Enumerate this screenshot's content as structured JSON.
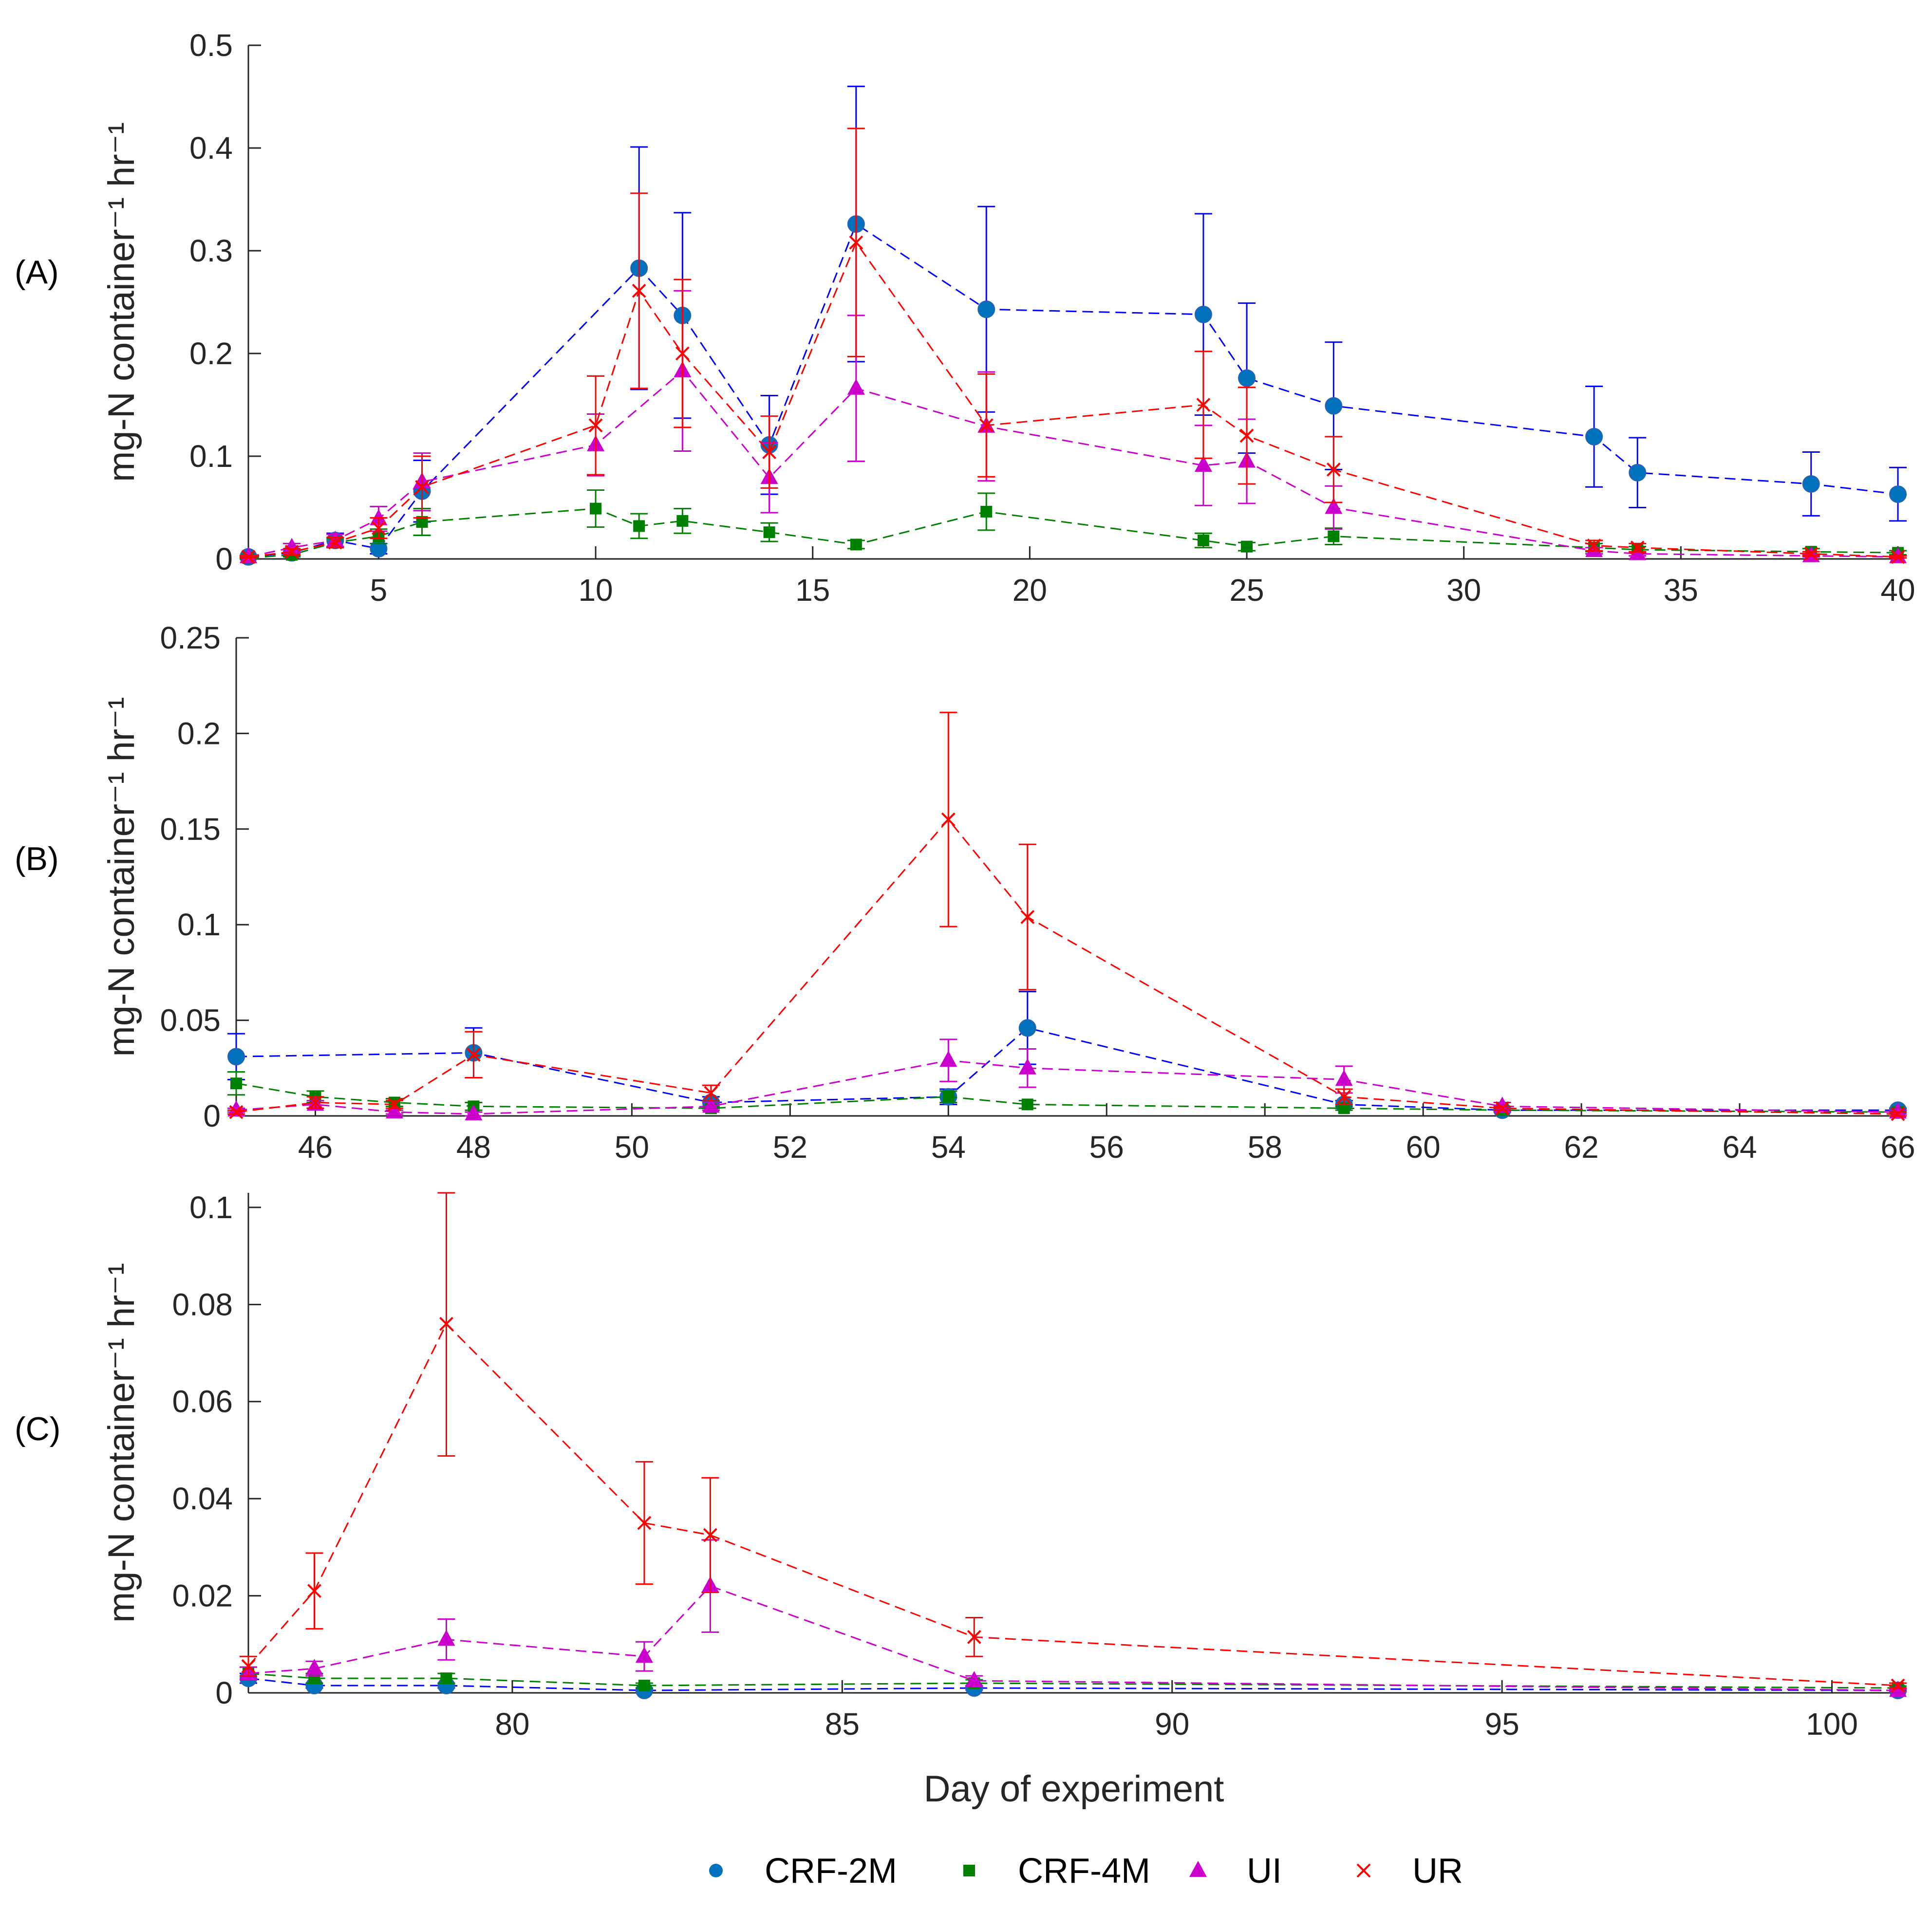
{
  "colors": {
    "CRF-2M": "#0072BD",
    "CRF-2M-line": "#0000FF",
    "CRF-4M": "#008000",
    "UI": "#CC00CC",
    "UR": "#FF0000",
    "axis": "#262626"
  },
  "xlabel": "Day of experiment",
  "legend": {
    "placement": "bottom",
    "entries": [
      {
        "name": "CRF-2M",
        "marker": "circle"
      },
      {
        "name": "CRF-4M",
        "marker": "square"
      },
      {
        "name": "UI",
        "marker": "triangle"
      },
      {
        "name": "UR",
        "marker": "x"
      }
    ]
  },
  "chart_data": [
    {
      "type": "line",
      "panel_label": "(A)",
      "ylabel": "mg-N container⁻¹ hr⁻¹",
      "xlabel": "",
      "xlim": [
        2,
        40
      ],
      "ylim": [
        0,
        0.5
      ],
      "xticks": [
        5,
        10,
        15,
        20,
        25,
        30,
        35,
        40
      ],
      "yticks": [
        0,
        0.1,
        0.2,
        0.3,
        0.4,
        0.5
      ],
      "ytick_labels": [
        "0",
        "0.1",
        "0.2",
        "0.3",
        "0.4",
        "0.5"
      ],
      "series": [
        {
          "name": "CRF-2M",
          "x": [
            2,
            3,
            4,
            5,
            6,
            11,
            12,
            14,
            16,
            19,
            24,
            25,
            27,
            33,
            34,
            38,
            40
          ],
          "y": [
            0.002,
            0.006,
            0.018,
            0.01,
            0.066,
            0.283,
            0.237,
            0.111,
            0.326,
            0.243,
            0.238,
            0.176,
            0.149,
            0.119,
            0.084,
            0.073,
            0.063
          ],
          "err": [
            0.001,
            0.003,
            0.007,
            0.005,
            0.03,
            0.118,
            0.1,
            0.048,
            0.134,
            0.1,
            0.098,
            0.073,
            0.062,
            0.049,
            0.034,
            0.031,
            0.026
          ]
        },
        {
          "name": "CRF-4M",
          "x": [
            2,
            3,
            4,
            5,
            6,
            10,
            11,
            12,
            14,
            16,
            19,
            24,
            25,
            27,
            33,
            34,
            38,
            40
          ],
          "y": [
            0.001,
            0.004,
            0.016,
            0.022,
            0.036,
            0.049,
            0.032,
            0.037,
            0.026,
            0.014,
            0.046,
            0.018,
            0.012,
            0.022,
            0.011,
            0.009,
            0.007,
            0.006
          ],
          "err": [
            0.001,
            0.002,
            0.004,
            0.007,
            0.013,
            0.018,
            0.012,
            0.012,
            0.009,
            0.004,
            0.018,
            0.007,
            0.004,
            0.008,
            0.004,
            0.003,
            0.003,
            0.002
          ]
        },
        {
          "name": "UI",
          "x": [
            2,
            3,
            4,
            5,
            6,
            10,
            12,
            14,
            16,
            19,
            24,
            25,
            27,
            33,
            34,
            38,
            40
          ],
          "y": [
            0.002,
            0.011,
            0.018,
            0.039,
            0.075,
            0.111,
            0.183,
            0.079,
            0.166,
            0.129,
            0.091,
            0.095,
            0.05,
            0.008,
            0.005,
            0.003,
            0.002
          ],
          "err": [
            0.001,
            0.004,
            0.006,
            0.012,
            0.028,
            0.03,
            0.078,
            0.034,
            0.071,
            0.053,
            0.039,
            0.041,
            0.021,
            0.003,
            0.002,
            0.001,
            0.001
          ]
        },
        {
          "name": "UR",
          "x": [
            2,
            3,
            4,
            5,
            6,
            10,
            11,
            12,
            14,
            16,
            19,
            24,
            25,
            27,
            33,
            34,
            38,
            40
          ],
          "y": [
            0.002,
            0.007,
            0.016,
            0.03,
            0.07,
            0.13,
            0.261,
            0.2,
            0.104,
            0.308,
            0.13,
            0.15,
            0.12,
            0.087,
            0.013,
            0.011,
            0.005,
            0.002
          ],
          "err": [
            0.001,
            0.003,
            0.005,
            0.01,
            0.03,
            0.048,
            0.095,
            0.072,
            0.035,
            0.111,
            0.05,
            0.052,
            0.047,
            0.032,
            0.005,
            0.004,
            0.002,
            0.001
          ]
        }
      ]
    },
    {
      "type": "line",
      "panel_label": "(B)",
      "ylabel": "mg-N container⁻¹ hr⁻¹",
      "xlabel": "",
      "xlim": [
        45,
        66
      ],
      "ylim": [
        0,
        0.25
      ],
      "xticks": [
        46,
        48,
        50,
        52,
        54,
        56,
        58,
        60,
        62,
        64,
        66
      ],
      "yticks": [
        0,
        0.05,
        0.1,
        0.15,
        0.2,
        0.25
      ],
      "ytick_labels": [
        "0",
        "0.05",
        "0.1",
        "0.15",
        "0.2",
        "0.25"
      ],
      "series": [
        {
          "name": "CRF-2M",
          "x": [
            45,
            48,
            51,
            54,
            55,
            59,
            61,
            66
          ],
          "y": [
            0.031,
            0.033,
            0.007,
            0.01,
            0.046,
            0.006,
            0.003,
            0.003
          ],
          "err": [
            0.012,
            0.013,
            0.003,
            0.004,
            0.019,
            0.002,
            0.001,
            0.001
          ]
        },
        {
          "name": "CRF-4M",
          "x": [
            45,
            46,
            47,
            48,
            51,
            54,
            55,
            59,
            61,
            66
          ],
          "y": [
            0.017,
            0.01,
            0.007,
            0.005,
            0.004,
            0.01,
            0.006,
            0.004,
            0.003,
            0.002
          ],
          "err": [
            0.006,
            0.003,
            0.002,
            0.002,
            0.001,
            0.003,
            0.002,
            0.001,
            0.001,
            0.001
          ]
        },
        {
          "name": "UI",
          "x": [
            45,
            46,
            47,
            48,
            51,
            54,
            55,
            59,
            61,
            66
          ],
          "y": [
            0.003,
            0.006,
            0.002,
            0.001,
            0.005,
            0.029,
            0.025,
            0.019,
            0.005,
            0.002
          ],
          "err": [
            0.001,
            0.002,
            0.001,
            0.001,
            0.002,
            0.011,
            0.01,
            0.007,
            0.002,
            0.001
          ]
        },
        {
          "name": "UR",
          "x": [
            45,
            46,
            47,
            48,
            51,
            54,
            55,
            59,
            61,
            66
          ],
          "y": [
            0.002,
            0.007,
            0.006,
            0.032,
            0.012,
            0.155,
            0.104,
            0.01,
            0.004,
            0.001
          ],
          "err": [
            0.001,
            0.003,
            0.002,
            0.012,
            0.004,
            0.056,
            0.038,
            0.004,
            0.001,
            0.001
          ]
        }
      ]
    },
    {
      "type": "line",
      "panel_label": "(C)",
      "ylabel": "mg-N container⁻¹ hr⁻¹",
      "xlabel": "Day of experiment",
      "xlim": [
        76,
        101
      ],
      "ylim": [
        0,
        0.103
      ],
      "xticks": [
        80,
        85,
        90,
        95,
        100
      ],
      "yticks": [
        0,
        0.02,
        0.04,
        0.06,
        0.08,
        0.1
      ],
      "ytick_labels": [
        "0",
        "0.02",
        "0.04",
        "0.06",
        "0.08",
        "0.1"
      ],
      "series": [
        {
          "name": "CRF-2M",
          "x": [
            76,
            77,
            79,
            82,
            87,
            101
          ],
          "y": [
            0.003,
            0.0015,
            0.0015,
            0.0005,
            0.001,
            0.0005
          ],
          "err": [
            0.001,
            0.0005,
            0.0005,
            0.0002,
            0.0004,
            0.0002
          ]
        },
        {
          "name": "CRF-4M",
          "x": [
            76,
            77,
            79,
            82,
            87,
            101
          ],
          "y": [
            0.004,
            0.003,
            0.003,
            0.0015,
            0.002,
            0.001
          ],
          "err": [
            0.0013,
            0.001,
            0.001,
            0.0005,
            0.0007,
            0.0004
          ]
        },
        {
          "name": "UI",
          "x": [
            76,
            77,
            79,
            82,
            83,
            87,
            101
          ],
          "y": [
            0.004,
            0.005,
            0.011,
            0.0075,
            0.022,
            0.0025,
            0.0005
          ],
          "err": [
            0.0013,
            0.0015,
            0.0042,
            0.003,
            0.0095,
            0.001,
            0.0002
          ]
        },
        {
          "name": "UR",
          "x": [
            76,
            77,
            79,
            82,
            83,
            87,
            101
          ],
          "y": [
            0.0055,
            0.021,
            0.076,
            0.035,
            0.0325,
            0.0115,
            0.0015
          ],
          "err": [
            0.002,
            0.0078,
            0.0272,
            0.0126,
            0.0118,
            0.004,
            0.0005
          ]
        }
      ]
    }
  ]
}
